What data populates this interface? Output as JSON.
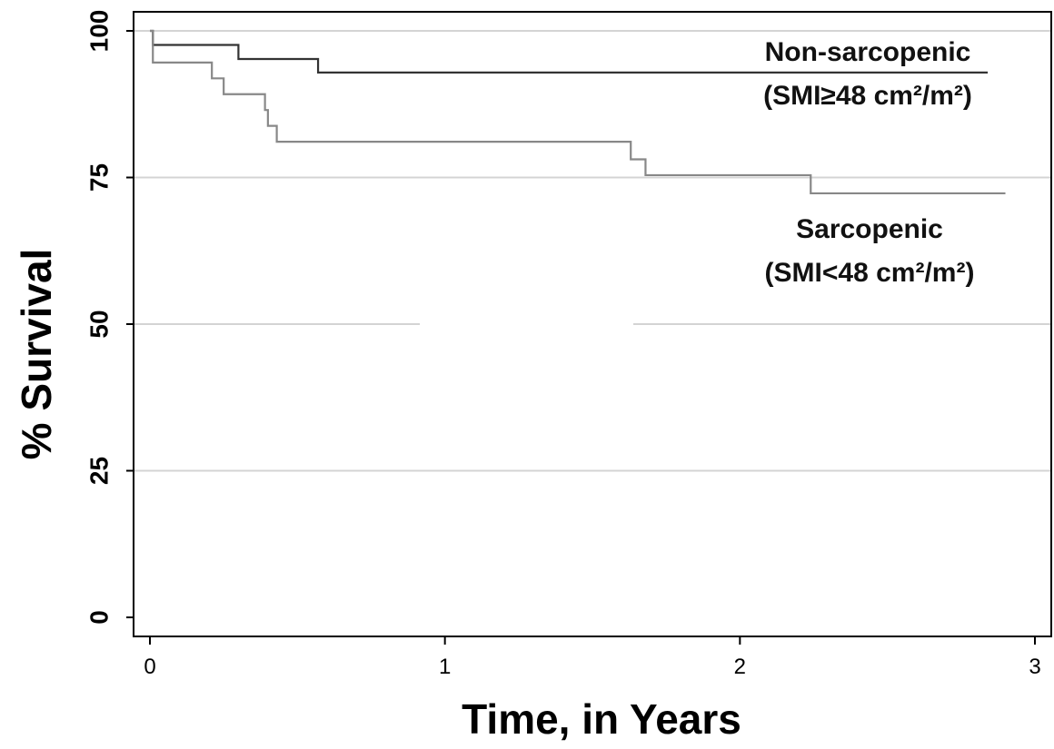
{
  "chart_data": {
    "type": "line",
    "xlabel": "Time, in Years",
    "ylabel": "% Survival",
    "xlim": [
      0,
      3
    ],
    "ylim": [
      0,
      100
    ],
    "x_ticks": [
      0,
      1,
      2,
      3
    ],
    "y_ticks": [
      0,
      25,
      50,
      75,
      100
    ],
    "grid": "horizontal",
    "series": [
      {
        "name": "Non-sarcopenic",
        "label_line2": "(SMI≥48 cm²/m²)",
        "color": "#333333",
        "x": [
          0,
          0.01,
          0.3,
          0.57,
          2.84
        ],
        "y": [
          100,
          97.6,
          95.2,
          92.9,
          92.9
        ]
      },
      {
        "name": "Sarcopenic",
        "label_line2": "(SMI<48 cm²/m²)",
        "color": "#888888",
        "x": [
          0,
          0.01,
          0.21,
          0.25,
          0.39,
          0.4,
          0.41,
          0.43,
          1.63,
          1.68,
          2.24,
          2.9
        ],
        "y": [
          100,
          94.6,
          91.9,
          89.2,
          86.5,
          83.8,
          83.8,
          81.1,
          78.1,
          75.4,
          72.3,
          72.3
        ]
      }
    ]
  }
}
